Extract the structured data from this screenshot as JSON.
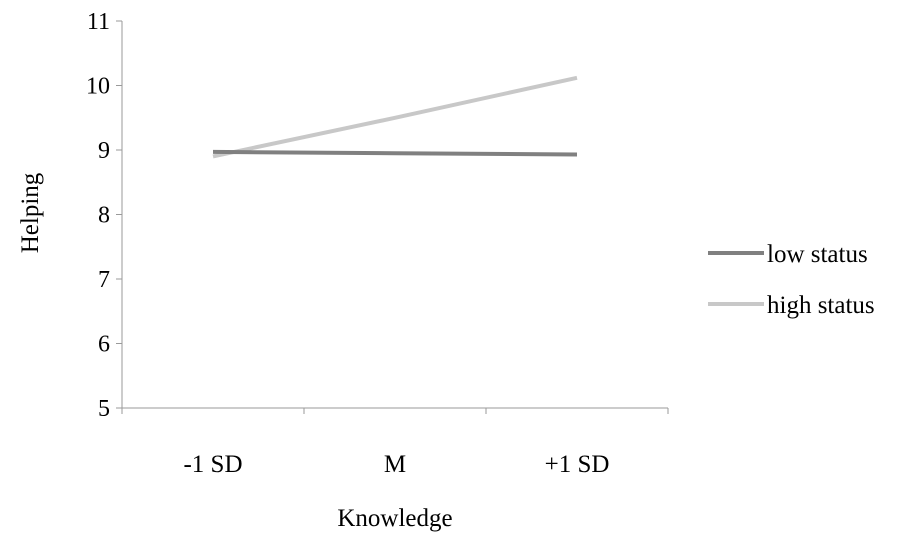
{
  "chart_data": {
    "type": "line",
    "title": "",
    "xlabel": "Knowledge",
    "ylabel": "Helping",
    "categories": [
      "-1 SD",
      "M",
      "+1 SD"
    ],
    "ylim": [
      5,
      11
    ],
    "yticks": [
      5,
      6,
      7,
      8,
      9,
      10,
      11
    ],
    "grid": false,
    "legend_position": "right",
    "series": [
      {
        "name": "low status",
        "values": [
          8.97,
          8.95,
          8.93
        ],
        "color": "#808080"
      },
      {
        "name": "high status",
        "values": [
          8.9,
          9.5,
          10.12
        ],
        "color": "#c8c8c8"
      }
    ]
  }
}
